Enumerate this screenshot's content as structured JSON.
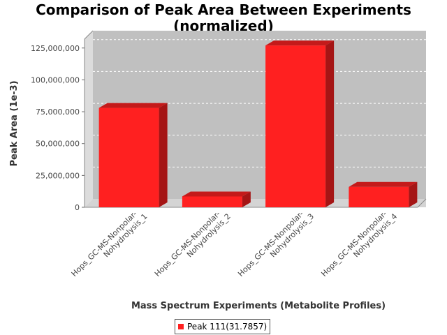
{
  "chart_data": {
    "type": "bar",
    "title_lines": [
      "Comparison of Peak Area Between Experiments",
      "(normalized)"
    ],
    "xlabel": "Mass Spectrum Experiments (Metabolite Profiles)",
    "ylabel": "Peak Area (1e-3)",
    "categories": [
      [
        "Hops_GC-MS-Nonpolar-",
        "Nohydrolysis_1"
      ],
      [
        "Hops_GC-MS-Nonpolar-",
        "Nohydrolysis_2"
      ],
      [
        "Hops_GC-MS-Nonpolar-",
        "Nohydrolysis_3"
      ],
      [
        "Hops_GC-MS-Nonpolar-",
        "Nohydrolysis_4"
      ]
    ],
    "series": [
      {
        "name": "Peak 111(31.7857)",
        "values": [
          78000000,
          8500000,
          127000000,
          16000000
        ]
      }
    ],
    "ylim": [
      0,
      132000000
    ],
    "yticks": [
      0,
      25000000,
      50000000,
      75000000,
      100000000,
      125000000
    ],
    "ytick_labels": [
      "0",
      "25,000,000",
      "50,000,000",
      "75,000,000",
      "100,000,000",
      "125,000,000"
    ],
    "grid": true,
    "legend_position": "bottom-center",
    "colors": {
      "bar_front": "#ff2020",
      "bar_top": "#c41a1a",
      "bar_side": "#a51515",
      "plot_bg": "#c0c0c0"
    }
  }
}
